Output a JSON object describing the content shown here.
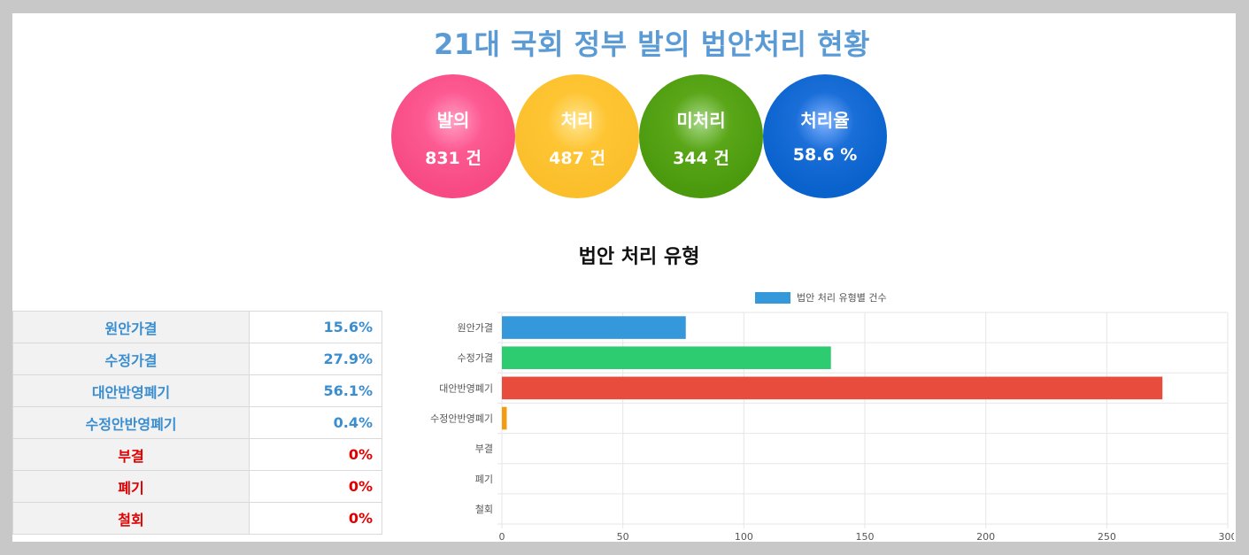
{
  "title": "21대 국회 정부 발의 법안처리 현황",
  "stats": [
    {
      "label": "발의",
      "value": "831 건",
      "color": "#f74a84"
    },
    {
      "label": "처리",
      "value": "487 건",
      "color": "#fbbf2c"
    },
    {
      "label": "미처리",
      "value": "344 건",
      "color": "#4b9a0e"
    },
    {
      "label": "처리율",
      "value": "58.6 %",
      "color": "#0a62cc"
    }
  ],
  "section_title": "법안 처리 유형",
  "table": [
    {
      "name": "원안가결",
      "pct": "15.6%",
      "color": "#3a8ecf"
    },
    {
      "name": "수정가결",
      "pct": "27.9%",
      "color": "#3a8ecf"
    },
    {
      "name": "대안반영폐기",
      "pct": "56.1%",
      "color": "#3a8ecf"
    },
    {
      "name": "수정안반영폐기",
      "pct": "0.4%",
      "color": "#3a8ecf"
    },
    {
      "name": "부결",
      "pct": "0%",
      "color": "#e00000"
    },
    {
      "name": "폐기",
      "pct": "0%",
      "color": "#e00000"
    },
    {
      "name": "철회",
      "pct": "0%",
      "color": "#e00000"
    }
  ],
  "chart_data": {
    "type": "bar",
    "orientation": "horizontal",
    "categories": [
      "원안가결",
      "수정가결",
      "대안반영폐기",
      "수정안반영폐기",
      "부결",
      "폐기",
      "철회"
    ],
    "series": [
      {
        "name": "법안 처리 유형별 건수",
        "values": [
          76,
          136,
          273,
          2,
          0,
          0,
          0
        ]
      }
    ],
    "bar_colors": [
      "#3498db",
      "#2ecc71",
      "#e74c3c",
      "#f39c12",
      "#9b59b6",
      "#34495e",
      "#1abc9c"
    ],
    "legend_color": "#3498db",
    "xlim": [
      0,
      300
    ],
    "xticks": [
      0,
      50,
      100,
      150,
      200,
      250,
      300
    ],
    "grid": true,
    "legend": "top-center"
  }
}
